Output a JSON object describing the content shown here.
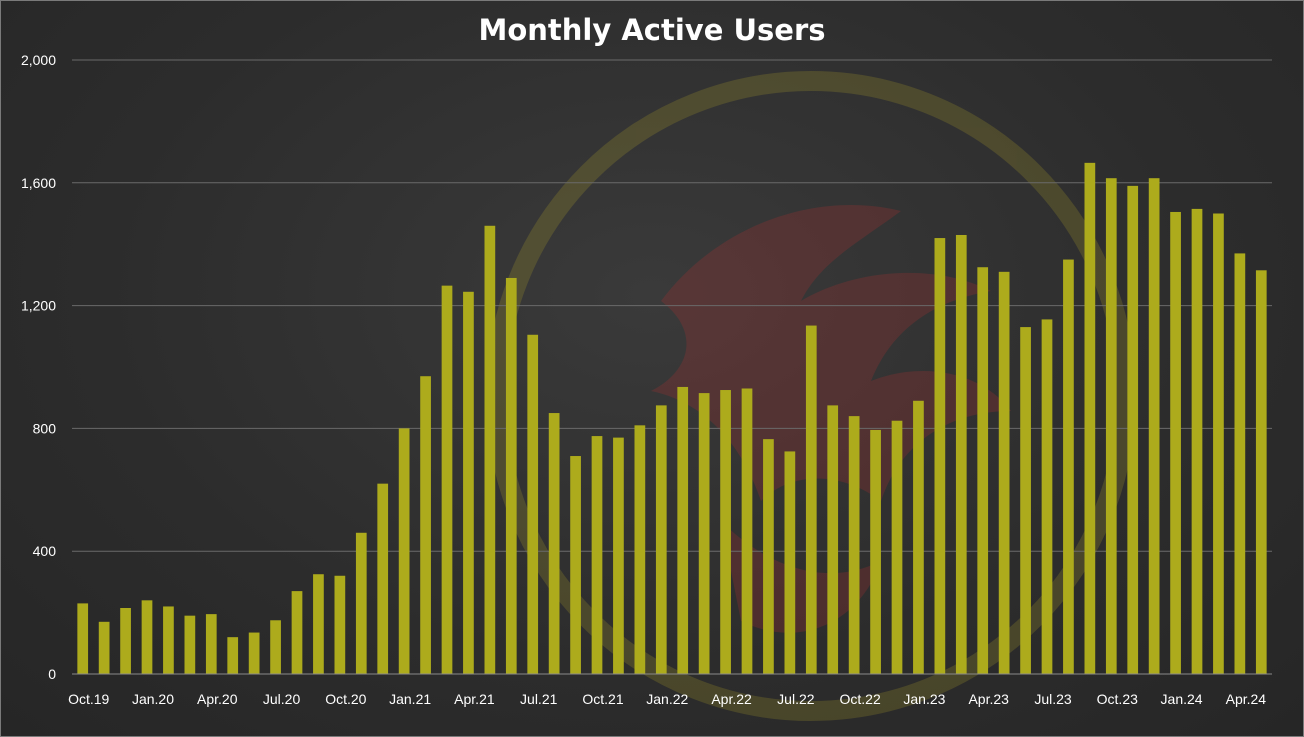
{
  "chart_data": {
    "type": "bar",
    "title": "Monthly Active Users",
    "xlabel": "",
    "ylabel": "",
    "ylim": [
      0,
      2000
    ],
    "yticks": [
      "0",
      "400",
      "800",
      "1,200",
      "1,600",
      "2,000"
    ],
    "ytick_values": [
      0,
      400,
      800,
      1200,
      1600,
      2000
    ],
    "x_tick_labels": [
      "Oct.19",
      "Jan.20",
      "Apr.20",
      "Jul.20",
      "Oct.20",
      "Jan.21",
      "Apr.21",
      "Jul.21",
      "Oct.21",
      "Jan.22",
      "Apr.22",
      "Jul.22",
      "Oct.22",
      "Jan.23",
      "Apr.23",
      "Jul.23",
      "Oct.23",
      "Jan.24",
      "Apr.24"
    ],
    "categories": [
      "Oct.19",
      "Nov.19",
      "Dec.19",
      "Jan.20",
      "Feb.20",
      "Mar.20",
      "Apr.20",
      "May.20",
      "Jun.20",
      "Jul.20",
      "Aug.20",
      "Sep.20",
      "Oct.20",
      "Nov.20",
      "Dec.20",
      "Jan.21",
      "Feb.21",
      "Mar.21",
      "Apr.21",
      "May.21",
      "Jun.21",
      "Jul.21",
      "Aug.21",
      "Sep.21",
      "Oct.21",
      "Nov.21",
      "Dec.21",
      "Jan.22",
      "Feb.22",
      "Mar.22",
      "Apr.22",
      "May.22",
      "Jun.22",
      "Jul.22",
      "Aug.22",
      "Sep.22",
      "Oct.22",
      "Nov.22",
      "Dec.22",
      "Jan.23",
      "Feb.23",
      "Mar.23",
      "Apr.23",
      "May.23",
      "Jun.23",
      "Jul.23",
      "Aug.23",
      "Sep.23",
      "Oct.23",
      "Nov.23",
      "Dec.23",
      "Jan.24",
      "Feb.24",
      "Mar.24",
      "Apr.24",
      "May.24"
    ],
    "values": [
      230,
      170,
      215,
      240,
      220,
      190,
      195,
      120,
      135,
      175,
      270,
      325,
      320,
      460,
      620,
      800,
      970,
      1265,
      1245,
      1460,
      1290,
      1105,
      850,
      710,
      775,
      770,
      810,
      875,
      935,
      915,
      925,
      930,
      765,
      725,
      1135,
      875,
      840,
      795,
      825,
      890,
      1420,
      1430,
      1325,
      1310,
      1130,
      1155,
      1350,
      1665,
      1615,
      1590,
      1615,
      1505,
      1515,
      1500,
      1370,
      1315
    ],
    "grid": true,
    "legend": "none",
    "bar_color": "#adab1c",
    "grid_color": "#6a6a6a",
    "text_color": "#ffffff",
    "background_color": "#2f2f2f"
  }
}
